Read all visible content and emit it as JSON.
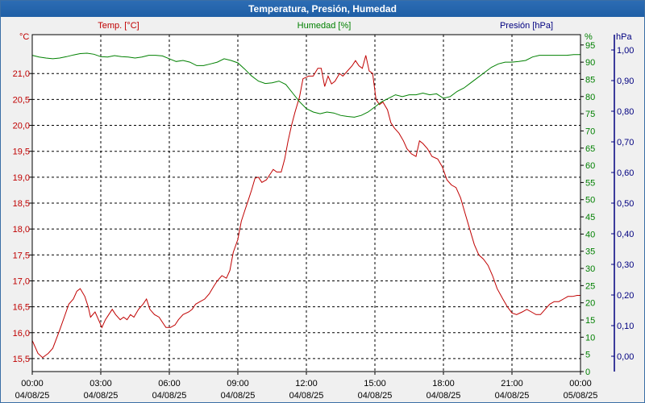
{
  "window": {
    "title": "Temperatura, Presión, Humedad"
  },
  "chart_data": {
    "type": "line",
    "title": "Temperatura, Presión, Humedad",
    "x_labels": [
      {
        "time": "00:00",
        "date": "04/08/25"
      },
      {
        "time": "03:00",
        "date": "04/08/25"
      },
      {
        "time": "06:00",
        "date": "04/08/25"
      },
      {
        "time": "09:00",
        "date": "04/08/25"
      },
      {
        "time": "12:00",
        "date": "04/08/25"
      },
      {
        "time": "15:00",
        "date": "04/08/25"
      },
      {
        "time": "18:00",
        "date": "04/08/25"
      },
      {
        "time": "21:00",
        "date": "04/08/25"
      },
      {
        "time": "00:00",
        "date": "05/08/25"
      }
    ],
    "x_range_hours": [
      0,
      24
    ],
    "grid": true,
    "axes": {
      "temp": {
        "unit": "°C",
        "header": "Temp. [°C]",
        "color": "#c00000",
        "range": [
          15.25,
          21.75
        ],
        "ticks": [
          "15,5",
          "16,0",
          "16,5",
          "17,0",
          "17,5",
          "18,0",
          "18,5",
          "19,0",
          "19,5",
          "20,0",
          "20,5",
          "21,0"
        ]
      },
      "humidity": {
        "unit": "%",
        "header": "Humedad [%]",
        "color": "#008000",
        "range": [
          0,
          98
        ],
        "ticks": [
          "0",
          "5",
          "10",
          "15",
          "20",
          "25",
          "30",
          "35",
          "40",
          "45",
          "50",
          "55",
          "60",
          "65",
          "70",
          "75",
          "80",
          "85",
          "90",
          "95"
        ]
      },
      "pressure": {
        "unit": "hPa",
        "header": "Presión [hPa]",
        "color": "#000080",
        "range": [
          -0.05,
          1.05
        ],
        "ticks": [
          "0,00",
          "0,10",
          "0,20",
          "0,30",
          "0,40",
          "0,50",
          "0,60",
          "0,70",
          "0,80",
          "0,90",
          "1,00"
        ]
      }
    },
    "series": [
      {
        "name": "Temp. [°C]",
        "color": "#c00000",
        "axis": "temp",
        "points": [
          [
            0.0,
            15.85
          ],
          [
            0.25,
            15.6
          ],
          [
            0.45,
            15.52
          ],
          [
            0.7,
            15.6
          ],
          [
            0.9,
            15.7
          ],
          [
            1.2,
            16.05
          ],
          [
            1.4,
            16.3
          ],
          [
            1.6,
            16.55
          ],
          [
            1.8,
            16.65
          ],
          [
            1.95,
            16.8
          ],
          [
            2.1,
            16.85
          ],
          [
            2.3,
            16.7
          ],
          [
            2.45,
            16.5
          ],
          [
            2.55,
            16.3
          ],
          [
            2.75,
            16.4
          ],
          [
            2.9,
            16.25
          ],
          [
            3.05,
            16.1
          ],
          [
            3.2,
            16.25
          ],
          [
            3.35,
            16.35
          ],
          [
            3.5,
            16.45
          ],
          [
            3.65,
            16.35
          ],
          [
            3.85,
            16.25
          ],
          [
            4.0,
            16.3
          ],
          [
            4.15,
            16.25
          ],
          [
            4.3,
            16.35
          ],
          [
            4.45,
            16.3
          ],
          [
            4.65,
            16.45
          ],
          [
            4.85,
            16.55
          ],
          [
            5.0,
            16.65
          ],
          [
            5.15,
            16.45
          ],
          [
            5.35,
            16.35
          ],
          [
            5.55,
            16.3
          ],
          [
            5.7,
            16.2
          ],
          [
            5.85,
            16.1
          ],
          [
            6.05,
            16.1
          ],
          [
            6.25,
            16.15
          ],
          [
            6.4,
            16.25
          ],
          [
            6.6,
            16.35
          ],
          [
            6.85,
            16.4
          ],
          [
            7.0,
            16.45
          ],
          [
            7.15,
            16.55
          ],
          [
            7.35,
            16.6
          ],
          [
            7.55,
            16.65
          ],
          [
            7.75,
            16.75
          ],
          [
            7.95,
            16.9
          ],
          [
            8.1,
            17.0
          ],
          [
            8.3,
            17.1
          ],
          [
            8.5,
            17.05
          ],
          [
            8.65,
            17.2
          ],
          [
            8.8,
            17.55
          ],
          [
            9.0,
            17.8
          ],
          [
            9.15,
            18.15
          ],
          [
            9.3,
            18.35
          ],
          [
            9.45,
            18.55
          ],
          [
            9.6,
            18.75
          ],
          [
            9.75,
            18.98
          ],
          [
            9.9,
            19.0
          ],
          [
            10.05,
            18.9
          ],
          [
            10.25,
            18.95
          ],
          [
            10.4,
            19.05
          ],
          [
            10.55,
            19.15
          ],
          [
            10.7,
            19.1
          ],
          [
            10.9,
            19.1
          ],
          [
            11.05,
            19.35
          ],
          [
            11.2,
            19.7
          ],
          [
            11.35,
            20.0
          ],
          [
            11.5,
            20.25
          ],
          [
            11.7,
            20.55
          ],
          [
            11.85,
            20.9
          ],
          [
            12.1,
            20.95
          ],
          [
            12.3,
            20.95
          ],
          [
            12.5,
            21.1
          ],
          [
            12.65,
            21.1
          ],
          [
            12.8,
            20.75
          ],
          [
            12.95,
            20.95
          ],
          [
            13.1,
            20.8
          ],
          [
            13.25,
            20.85
          ],
          [
            13.45,
            21.0
          ],
          [
            13.6,
            20.95
          ],
          [
            13.8,
            21.05
          ],
          [
            14.0,
            21.15
          ],
          [
            14.15,
            21.25
          ],
          [
            14.3,
            21.15
          ],
          [
            14.45,
            21.1
          ],
          [
            14.6,
            21.35
          ],
          [
            14.75,
            21.05
          ],
          [
            14.9,
            21.0
          ],
          [
            15.05,
            20.5
          ],
          [
            15.2,
            20.4
          ],
          [
            15.35,
            20.45
          ],
          [
            15.55,
            20.3
          ],
          [
            15.7,
            20.05
          ],
          [
            15.85,
            19.95
          ],
          [
            16.05,
            19.85
          ],
          [
            16.25,
            19.7
          ],
          [
            16.4,
            19.55
          ],
          [
            16.6,
            19.45
          ],
          [
            16.8,
            19.4
          ],
          [
            16.95,
            19.7
          ],
          [
            17.1,
            19.65
          ],
          [
            17.3,
            19.55
          ],
          [
            17.5,
            19.4
          ],
          [
            17.75,
            19.35
          ],
          [
            17.95,
            19.2
          ],
          [
            18.15,
            18.95
          ],
          [
            18.35,
            18.85
          ],
          [
            18.55,
            18.8
          ],
          [
            18.75,
            18.6
          ],
          [
            18.95,
            18.3
          ],
          [
            19.15,
            18.0
          ],
          [
            19.35,
            17.7
          ],
          [
            19.55,
            17.5
          ],
          [
            19.75,
            17.42
          ],
          [
            19.95,
            17.3
          ],
          [
            20.15,
            17.1
          ],
          [
            20.35,
            16.85
          ],
          [
            20.6,
            16.65
          ],
          [
            20.8,
            16.5
          ],
          [
            21.0,
            16.38
          ],
          [
            21.2,
            16.35
          ],
          [
            21.45,
            16.4
          ],
          [
            21.65,
            16.45
          ],
          [
            21.85,
            16.4
          ],
          [
            22.05,
            16.35
          ],
          [
            22.25,
            16.35
          ],
          [
            22.45,
            16.45
          ],
          [
            22.65,
            16.55
          ],
          [
            22.85,
            16.6
          ],
          [
            23.05,
            16.6
          ],
          [
            23.25,
            16.65
          ],
          [
            23.45,
            16.7
          ],
          [
            23.65,
            16.7
          ],
          [
            23.85,
            16.72
          ],
          [
            24.0,
            16.72
          ]
        ]
      },
      {
        "name": "Humedad [%]",
        "color": "#008000",
        "axis": "humidity",
        "points": [
          [
            0.0,
            92
          ],
          [
            0.3,
            91.5
          ],
          [
            0.6,
            91.2
          ],
          [
            0.9,
            91.0
          ],
          [
            1.2,
            91.2
          ],
          [
            1.5,
            91.6
          ],
          [
            1.8,
            92.1
          ],
          [
            2.1,
            92.5
          ],
          [
            2.4,
            92.6
          ],
          [
            2.7,
            92.3
          ],
          [
            3.0,
            91.6
          ],
          [
            3.3,
            91.5
          ],
          [
            3.6,
            91.9
          ],
          [
            3.9,
            91.6
          ],
          [
            4.2,
            91.5
          ],
          [
            4.5,
            91.2
          ],
          [
            4.8,
            91.5
          ],
          [
            5.1,
            92.0
          ],
          [
            5.4,
            92.0
          ],
          [
            5.7,
            91.8
          ],
          [
            6.0,
            91.0
          ],
          [
            6.3,
            90.2
          ],
          [
            6.6,
            90.5
          ],
          [
            6.9,
            90.0
          ],
          [
            7.2,
            89.0
          ],
          [
            7.5,
            89.0
          ],
          [
            7.8,
            89.5
          ],
          [
            8.1,
            90.0
          ],
          [
            8.4,
            91.0
          ],
          [
            8.7,
            90.5
          ],
          [
            9.0,
            89.8
          ],
          [
            9.3,
            88.0
          ],
          [
            9.6,
            86.0
          ],
          [
            9.9,
            84.5
          ],
          [
            10.2,
            83.8
          ],
          [
            10.5,
            84.0
          ],
          [
            10.8,
            84.5
          ],
          [
            11.1,
            83.5
          ],
          [
            11.4,
            81.0
          ],
          [
            11.7,
            78.5
          ],
          [
            12.0,
            76.5
          ],
          [
            12.3,
            75.5
          ],
          [
            12.6,
            75.0
          ],
          [
            12.9,
            75.5
          ],
          [
            13.2,
            75.2
          ],
          [
            13.5,
            74.5
          ],
          [
            13.8,
            74.2
          ],
          [
            14.1,
            74.0
          ],
          [
            14.4,
            74.5
          ],
          [
            14.7,
            75.5
          ],
          [
            15.0,
            77.0
          ],
          [
            15.3,
            78.5
          ],
          [
            15.6,
            79.5
          ],
          [
            15.9,
            80.5
          ],
          [
            16.2,
            80.0
          ],
          [
            16.5,
            80.5
          ],
          [
            16.8,
            80.5
          ],
          [
            17.1,
            81.0
          ],
          [
            17.4,
            80.5
          ],
          [
            17.7,
            80.8
          ],
          [
            18.0,
            79.5
          ],
          [
            18.3,
            80.0
          ],
          [
            18.6,
            81.5
          ],
          [
            18.9,
            82.5
          ],
          [
            19.2,
            84.0
          ],
          [
            19.5,
            85.5
          ],
          [
            19.8,
            87.0
          ],
          [
            20.1,
            88.5
          ],
          [
            20.4,
            89.5
          ],
          [
            20.7,
            90.0
          ],
          [
            21.0,
            90.0
          ],
          [
            21.3,
            90.2
          ],
          [
            21.6,
            90.5
          ],
          [
            21.9,
            91.5
          ],
          [
            22.2,
            92.0
          ],
          [
            22.5,
            92.0
          ],
          [
            22.8,
            92.0
          ],
          [
            23.1,
            92.0
          ],
          [
            23.4,
            92.0
          ],
          [
            23.7,
            92.2
          ],
          [
            24.0,
            92.2
          ]
        ]
      }
    ]
  }
}
